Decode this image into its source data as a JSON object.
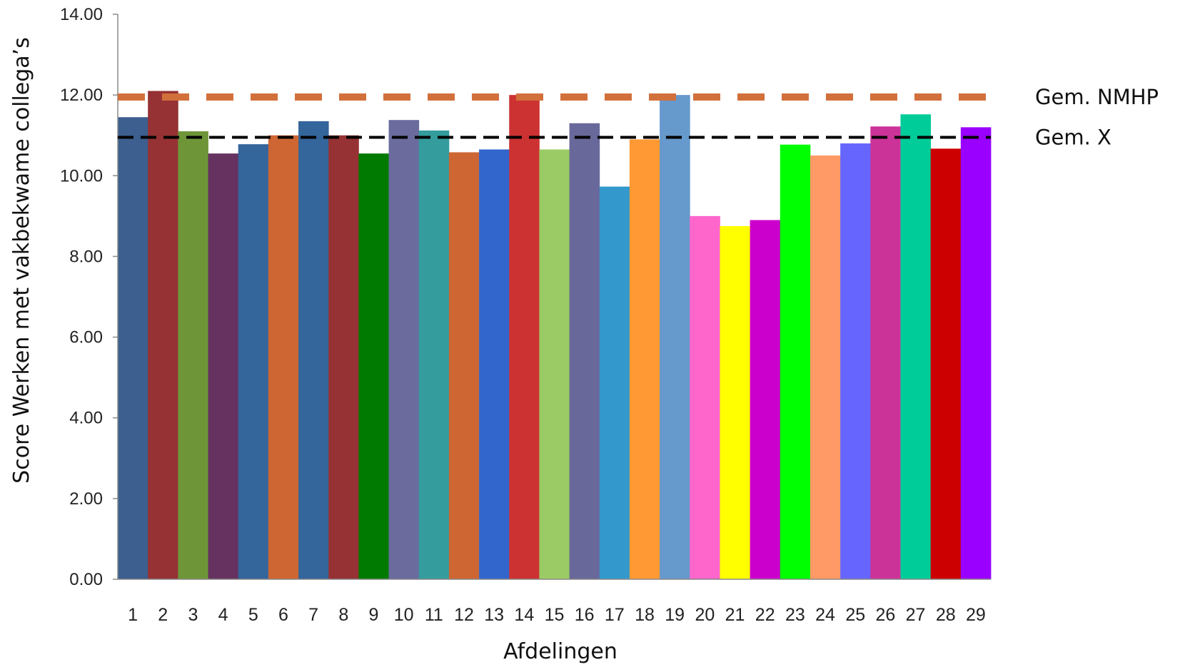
{
  "chart_data": {
    "type": "bar",
    "xlabel": "Afdelingen",
    "ylabel": "Score Werken met vakbekwame collega’s",
    "ylim": [
      0,
      14
    ],
    "yticks": [
      "0.00",
      "2.00",
      "4.00",
      "6.00",
      "8.00",
      "10.00",
      "12.00",
      "14.00"
    ],
    "categories": [
      "1",
      "2",
      "3",
      "4",
      "5",
      "6",
      "7",
      "8",
      "9",
      "10",
      "11",
      "12",
      "13",
      "14",
      "15",
      "16",
      "17",
      "18",
      "19",
      "20",
      "21",
      "22",
      "23",
      "24",
      "25",
      "26",
      "27",
      "28",
      "29"
    ],
    "values": [
      11.45,
      12.1,
      11.1,
      10.55,
      10.78,
      11.0,
      11.35,
      11.0,
      10.55,
      11.38,
      11.12,
      10.58,
      10.65,
      12.0,
      10.65,
      11.3,
      9.73,
      10.9,
      12.0,
      9.0,
      8.75,
      8.9,
      10.77,
      10.5,
      10.8,
      11.22,
      11.52,
      10.67,
      11.2
    ],
    "colors": [
      "#3C5F8F",
      "#963234",
      "#6E9638",
      "#66325F",
      "#34659B",
      "#CD6633",
      "#34659B",
      "#963234",
      "#007A00",
      "#6B6B9E",
      "#349C9C",
      "#CD6633",
      "#3366CC",
      "#CD3232",
      "#9BCB64",
      "#68689A",
      "#3399CC",
      "#FF9933",
      "#6699CC",
      "#FF66CC",
      "#FFFF00",
      "#CC00CC",
      "#00FF00",
      "#FF9966",
      "#6666FF",
      "#CC3399",
      "#00CC99",
      "#CC0000",
      "#9900FF"
    ],
    "reference_lines": [
      {
        "label": "Gem. NMHP",
        "value": 11.95,
        "color": "#D2703C",
        "style": "dashed-thick"
      },
      {
        "label": "Gem. X",
        "value": 10.95,
        "color": "#000000",
        "style": "dashed-thin"
      }
    ],
    "grid": false,
    "legend": "none"
  }
}
